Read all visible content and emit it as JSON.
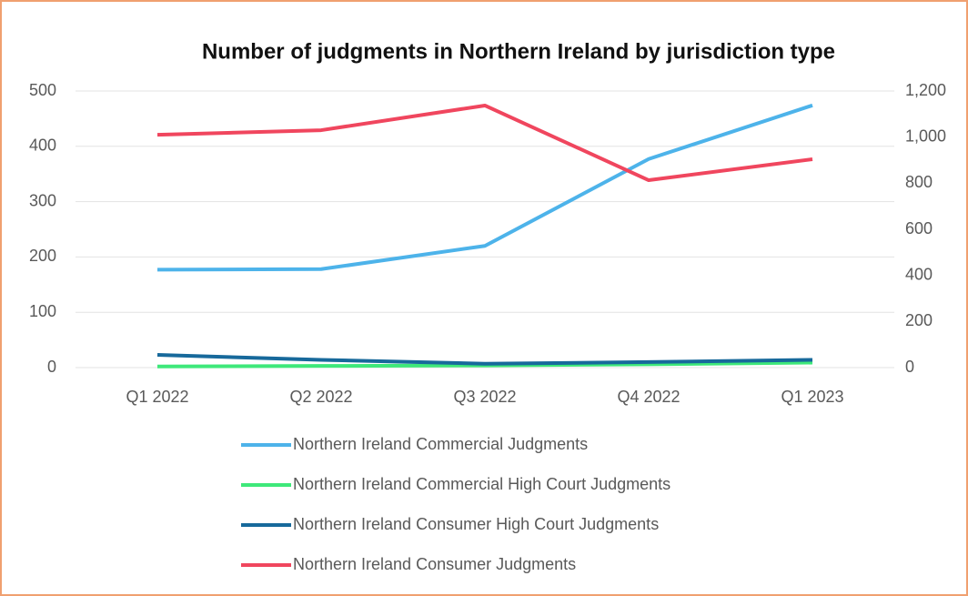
{
  "chart_data": {
    "type": "line",
    "title": "Number of judgments in Northern Ireland by jurisdiction type",
    "categories": [
      "Q1 2022",
      "Q2 2022",
      "Q3 2022",
      "Q4 2022",
      "Q1 2023"
    ],
    "series": [
      {
        "name": "Northern Ireland Commercial Judgments",
        "color": "#4db3ea",
        "values": [
          177,
          178,
          220,
          377,
          474
        ]
      },
      {
        "name": "Northern Ireland Commercial High Court Judgments",
        "color": "#3ee87a",
        "values": [
          2,
          3,
          4,
          6,
          9
        ]
      },
      {
        "name": "Northern Ireland Consumer High Court Judgments",
        "color": "#17699b",
        "values": [
          23,
          14,
          7,
          10,
          14
        ]
      },
      {
        "name": "Northern Ireland Consumer Judgments",
        "color": "#f0465e",
        "axis": "y2",
        "values": [
          1010,
          1030,
          1137,
          813,
          904
        ]
      }
    ],
    "ylim": [
      0,
      500
    ],
    "yticks": [
      0,
      100,
      200,
      300,
      400,
      500
    ],
    "y2lim": [
      0,
      1200
    ],
    "y2ticks": [
      0,
      200,
      400,
      600,
      800,
      {
        "value": 1000,
        "label": "1,000"
      },
      {
        "value": 1200,
        "label": "1,200"
      }
    ],
    "grid": true,
    "legend": "bottom"
  }
}
